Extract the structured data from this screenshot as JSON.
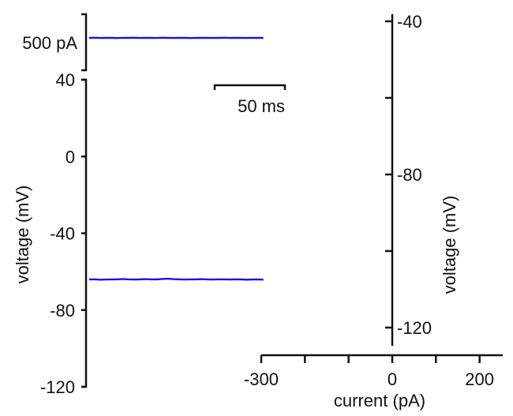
{
  "chart_data": [
    {
      "type": "line",
      "panel": "current command trace",
      "scale_bar": {
        "value": 500,
        "label": "500 pA"
      },
      "series": [
        {
          "x_ms": [
            0,
            4,
            8,
            12,
            16,
            20,
            24,
            28,
            32,
            36,
            40,
            44,
            48,
            52,
            56,
            60,
            64,
            68,
            72,
            76,
            80,
            84,
            88,
            92,
            96,
            100,
            104,
            108,
            112,
            116,
            120,
            124
          ],
          "current_offset": [
            0,
            0.002,
            -0.001,
            0.001,
            0,
            -0.002,
            0.001,
            0,
            0.002,
            -0.001,
            0,
            0.001,
            -0.001,
            0.002,
            0,
            -0.001,
            0.001,
            0,
            -0.002,
            0.001,
            0,
            0.001,
            -0.001,
            0,
            0.002,
            -0.001,
            0.001,
            0,
            -0.001,
            0.001,
            0,
            0
          ]
        }
      ]
    },
    {
      "type": "line",
      "panel": "voltage trace",
      "ylabel": "voltage (mV)",
      "yticks": [
        "40",
        "0",
        "-40",
        "-80",
        "-120"
      ],
      "ylim": [
        -120,
        40
      ],
      "scale_bar": {
        "value": 50,
        "label": "50 ms"
      },
      "series": [
        {
          "x_ms": [
            0,
            4,
            8,
            12,
            16,
            20,
            24,
            28,
            32,
            36,
            40,
            44,
            48,
            52,
            56,
            60,
            64,
            68,
            72,
            76,
            80,
            84,
            88,
            92,
            96,
            100,
            104,
            108,
            112,
            116,
            120,
            124
          ],
          "y": [
            -64,
            -64,
            -64.2,
            -64.1,
            -64,
            -64,
            -63.8,
            -64,
            -64.1,
            -64,
            -63.9,
            -64,
            -64,
            -63.8,
            -63.7,
            -63.9,
            -64,
            -64.1,
            -64,
            -64,
            -63.9,
            -64,
            -64.1,
            -64,
            -64,
            -64.1,
            -64,
            -64,
            -64.2,
            -64.1,
            -64,
            -64.2
          ]
        }
      ]
    },
    {
      "type": "scatter",
      "panel": "current-voltage relation",
      "xlabel": "current  (pA)",
      "ylabel": "voltage (mV)",
      "xticks": [
        "-300",
        "0",
        "200"
      ],
      "yticks": [
        "-40",
        "-80",
        "-120"
      ],
      "xlim": [
        -300,
        250
      ],
      "ylim": [
        -125,
        -40
      ],
      "series": []
    }
  ]
}
